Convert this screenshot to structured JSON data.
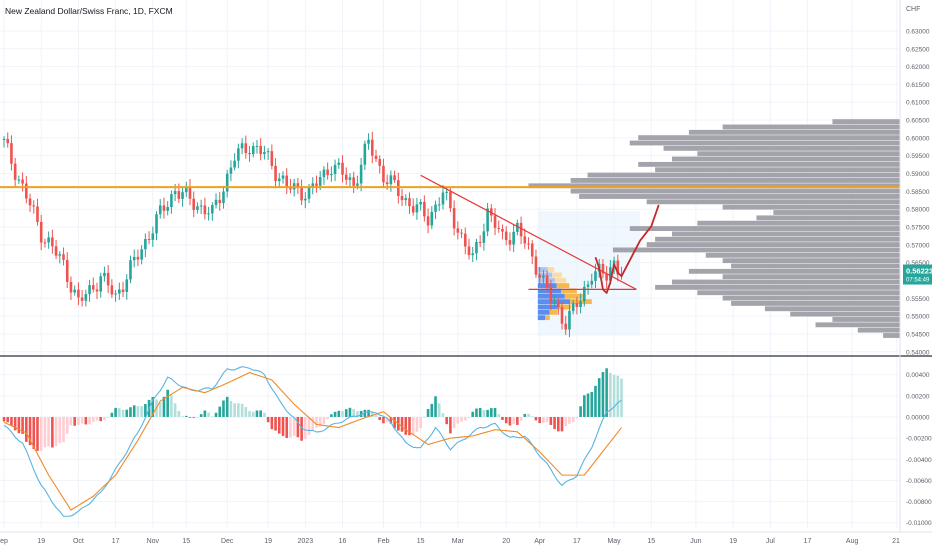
{
  "header": {
    "title": "New Zealand Dollar/Swiss Franc, 1D, FXCM"
  },
  "colors": {
    "up": "#26a69a",
    "down": "#ef5350",
    "profile": "#9e9ea6",
    "hline": "#f0a020",
    "trend": "#e53935",
    "forecast": "#c62828",
    "macd": "#5ab4e0",
    "signal": "#f08a24",
    "hist_up_strong": "#26a69a",
    "hist_up_weak": "#b2dfdb",
    "hist_down_strong": "#ef5350",
    "hist_down_weak": "#ffcdd2",
    "price_badge": "#26a69a",
    "fixed_range_fill": "#e3f2fd"
  },
  "chart_data": [
    {
      "type": "candlestick",
      "title": "New Zealand Dollar/Swiss Franc, 1D, FXCM",
      "currency": "CHF",
      "ylim": [
        0.5405,
        0.637
      ],
      "y_ticks": [
        "0.63000",
        "0.62500",
        "0.62000",
        "0.61500",
        "0.61000",
        "0.60500",
        "0.60000",
        "0.59500",
        "0.59000",
        "0.58500",
        "0.58000",
        "0.57500",
        "0.57000",
        "0.56500",
        "0.55500",
        "0.55000",
        "0.54500",
        "0.54000"
      ],
      "last_price": "0.56223",
      "countdown": "07:54:49",
      "horizontal_level": 0.5862,
      "close_anchors": [
        [
          0,
          0.5985
        ],
        [
          10,
          0.5735
        ],
        [
          16,
          0.5645
        ],
        [
          20,
          0.5535
        ],
        [
          26,
          0.561
        ],
        [
          30,
          0.5555
        ],
        [
          36,
          0.567
        ],
        [
          40,
          0.575
        ],
        [
          46,
          0.5855
        ],
        [
          52,
          0.5812
        ],
        [
          56,
          0.5785
        ],
        [
          62,
          0.5945
        ],
        [
          66,
          0.598
        ],
        [
          70,
          0.5955
        ],
        [
          76,
          0.5862
        ],
        [
          82,
          0.5845
        ],
        [
          88,
          0.5925
        ],
        [
          94,
          0.587
        ],
        [
          98,
          0.5985
        ],
        [
          102,
          0.5895
        ],
        [
          108,
          0.5825
        ],
        [
          114,
          0.5775
        ],
        [
          118,
          0.5845
        ],
        [
          122,
          0.5745
        ],
        [
          126,
          0.5655
        ],
        [
          130,
          0.5795
        ],
        [
          134,
          0.5715
        ],
        [
          138,
          0.5745
        ],
        [
          143,
          0.5645
        ],
        [
          147,
          0.5545
        ],
        [
          151,
          0.5485
        ],
        [
          155,
          0.5545
        ],
        [
          158,
          0.5625
        ],
        [
          162,
          0.5612
        ],
        [
          164,
          0.5655
        ],
        [
          166,
          0.5622
        ]
      ],
      "volume_profile_main": [
        [
          0.5445,
          0.2
        ],
        [
          0.546,
          0.5
        ],
        [
          0.5475,
          1.0
        ],
        [
          0.549,
          0.8
        ],
        [
          0.5505,
          1.3
        ],
        [
          0.552,
          1.6
        ],
        [
          0.5535,
          2.0
        ],
        [
          0.555,
          2.1
        ],
        [
          0.5565,
          2.4
        ],
        [
          0.558,
          2.9
        ],
        [
          0.5595,
          2.7
        ],
        [
          0.561,
          2.1
        ],
        [
          0.5625,
          2.5
        ],
        [
          0.564,
          2.0
        ],
        [
          0.5655,
          2.1
        ],
        [
          0.567,
          2.3
        ],
        [
          0.5685,
          3.4
        ],
        [
          0.57,
          3.0
        ],
        [
          0.5715,
          2.9
        ],
        [
          0.573,
          2.7
        ],
        [
          0.5745,
          3.2
        ],
        [
          0.576,
          2.4
        ],
        [
          0.5775,
          1.7
        ],
        [
          0.579,
          1.5
        ],
        [
          0.5805,
          2.1
        ],
        [
          0.582,
          3.0
        ],
        [
          0.5835,
          3.8
        ],
        [
          0.585,
          3.9
        ],
        [
          0.5865,
          4.4
        ],
        [
          0.588,
          3.9
        ],
        [
          0.5895,
          3.7
        ],
        [
          0.591,
          2.9
        ],
        [
          0.5925,
          3.1
        ],
        [
          0.594,
          2.7
        ],
        [
          0.5955,
          2.4
        ],
        [
          0.597,
          2.8
        ],
        [
          0.5985,
          3.2
        ],
        [
          0.6,
          3.1
        ],
        [
          0.6015,
          2.5
        ],
        [
          0.603,
          2.1
        ],
        [
          0.6045,
          0.8
        ]
      ],
      "volume_profile_fixed": [
        [
          0.5495,
          0.8
        ],
        [
          0.551,
          1.3
        ],
        [
          0.5525,
          2.2
        ],
        [
          0.554,
          3.6
        ],
        [
          0.5555,
          3.0
        ],
        [
          0.557,
          2.6
        ],
        [
          0.5585,
          2.1
        ],
        [
          0.56,
          1.9
        ],
        [
          0.5615,
          1.6
        ],
        [
          0.563,
          1.1
        ]
      ],
      "trendlines": [
        {
          "points": [
            [
              112,
              0.5895
            ],
            [
              170,
              0.5575
            ]
          ]
        },
        {
          "points": [
            [
              141,
              0.5575
            ],
            [
              170,
              0.5575
            ]
          ]
        }
      ],
      "forecast_path": [
        [
          159,
          0.5665
        ],
        [
          160,
          0.5635
        ],
        [
          161,
          0.5575
        ],
        [
          162,
          0.5565
        ],
        [
          163,
          0.5595
        ],
        [
          164,
          0.5645
        ],
        [
          165,
          0.5622
        ],
        [
          166,
          0.5612
        ],
        [
          168,
          0.5652
        ],
        [
          169,
          0.5672
        ],
        [
          171,
          0.5712
        ],
        [
          174,
          0.5752
        ],
        [
          176,
          0.5812
        ]
      ]
    },
    {
      "type": "macd",
      "ylim": [
        -0.0105,
        0.0052
      ],
      "y_ticks": [
        "0.00400",
        "0.00200",
        "0.00000",
        "-0.00200",
        "-0.00400",
        "-0.00600",
        "-0.00800",
        "-0.01000"
      ],
      "macd_anchors": [
        [
          0,
          -0.0008
        ],
        [
          5,
          -0.0025
        ],
        [
          10,
          -0.0065
        ],
        [
          16,
          -0.0095
        ],
        [
          20,
          -0.009
        ],
        [
          26,
          -0.0072
        ],
        [
          30,
          -0.005
        ],
        [
          36,
          -0.0015
        ],
        [
          40,
          0.0015
        ],
        [
          44,
          0.0037
        ],
        [
          50,
          0.0025
        ],
        [
          56,
          0.0027
        ],
        [
          60,
          0.0045
        ],
        [
          66,
          0.0047
        ],
        [
          70,
          0.004
        ],
        [
          74,
          0.0015
        ],
        [
          80,
          -0.001
        ],
        [
          84,
          -0.0015
        ],
        [
          90,
          -0.0005
        ],
        [
          96,
          0.0003
        ],
        [
          100,
          0.0005
        ],
        [
          104,
          -0.0005
        ],
        [
          108,
          -0.0025
        ],
        [
          112,
          -0.003
        ],
        [
          116,
          -0.001
        ],
        [
          120,
          -0.003
        ],
        [
          124,
          -0.002
        ],
        [
          128,
          -0.001
        ],
        [
          132,
          -0.0007
        ],
        [
          136,
          -0.002
        ],
        [
          140,
          -0.0018
        ],
        [
          146,
          -0.0045
        ],
        [
          150,
          -0.0065
        ],
        [
          154,
          -0.0055
        ],
        [
          158,
          -0.0028
        ],
        [
          162,
          0.0005
        ],
        [
          166,
          0.0015
        ]
      ],
      "signal_anchors": [
        [
          0,
          -0.0005
        ],
        [
          6,
          -0.0015
        ],
        [
          12,
          -0.0055
        ],
        [
          18,
          -0.0088
        ],
        [
          24,
          -0.0075
        ],
        [
          30,
          -0.0055
        ],
        [
          36,
          -0.0022
        ],
        [
          42,
          0.0015
        ],
        [
          48,
          0.0028
        ],
        [
          54,
          0.0023
        ],
        [
          60,
          0.0032
        ],
        [
          66,
          0.0042
        ],
        [
          72,
          0.0035
        ],
        [
          78,
          0.0012
        ],
        [
          84,
          -0.0007
        ],
        [
          90,
          -0.001
        ],
        [
          96,
          -0.0002
        ],
        [
          102,
          0.0005
        ],
        [
          108,
          -0.0012
        ],
        [
          114,
          -0.0026
        ],
        [
          120,
          -0.002
        ],
        [
          126,
          -0.0018
        ],
        [
          132,
          -0.0012
        ],
        [
          138,
          -0.0014
        ],
        [
          144,
          -0.0033
        ],
        [
          150,
          -0.0055
        ],
        [
          156,
          -0.0055
        ],
        [
          162,
          -0.0028
        ],
        [
          166,
          -0.001
        ]
      ]
    }
  ],
  "x_axis": {
    "labels": [
      {
        "text": "ep",
        "bar": 0
      },
      {
        "text": "19",
        "bar": 10
      },
      {
        "text": "Oct",
        "bar": 20
      },
      {
        "text": "17",
        "bar": 30
      },
      {
        "text": "Nov",
        "bar": 40
      },
      {
        "text": "15",
        "bar": 49
      },
      {
        "text": "Dec",
        "bar": 60
      },
      {
        "text": "19",
        "bar": 71
      },
      {
        "text": "2023",
        "bar": 81
      },
      {
        "text": "16",
        "bar": 91
      },
      {
        "text": "Feb",
        "bar": 102
      },
      {
        "text": "15",
        "bar": 112
      },
      {
        "text": "Mar",
        "bar": 122
      },
      {
        "text": "20",
        "bar": 135
      },
      {
        "text": "Apr",
        "bar": 144
      },
      {
        "text": "17",
        "bar": 154
      },
      {
        "text": "May",
        "bar": 164
      },
      {
        "text": "15",
        "bar": 174
      },
      {
        "text": "Jun",
        "bar": 186
      },
      {
        "text": "19",
        "bar": 196
      },
      {
        "text": "Jul",
        "bar": 206
      },
      {
        "text": "17",
        "bar": 216
      },
      {
        "text": "Aug",
        "bar": 228
      },
      {
        "text": "21",
        "bar": 240
      }
    ]
  }
}
